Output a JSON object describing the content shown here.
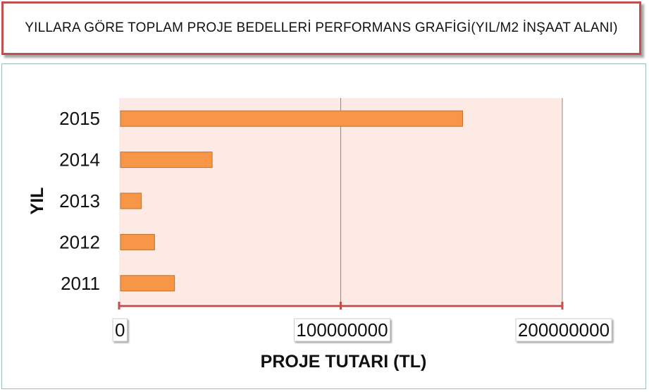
{
  "title": "YILLARA GÖRE TOPLAM PROJE BEDELLERİ PERFORMANS GRAFİGİ(YIL/M2 İNŞAAT ALANI)",
  "chart_data": {
    "type": "bar",
    "orientation": "horizontal",
    "categories": [
      "2011",
      "2012",
      "2013",
      "2014",
      "2015"
    ],
    "values": [
      25000000,
      16000000,
      10000000,
      42000000,
      155000000
    ],
    "xlabel": "PROJE TUTARI (TL)",
    "ylabel": "YIL",
    "xlim": [
      0,
      200000000
    ],
    "xticks": [
      {
        "value": 0,
        "label": "0"
      },
      {
        "value": 100000000,
        "label": "100000000"
      },
      {
        "value": 200000000,
        "label": "200000000"
      }
    ],
    "grid": true,
    "legend": "none",
    "colors": {
      "bar": "#f79646",
      "bar_edge": "#c0702e",
      "plot_bg": "#fdeae4",
      "axis": "#c0504d",
      "grid": "#8a8a8a"
    }
  }
}
